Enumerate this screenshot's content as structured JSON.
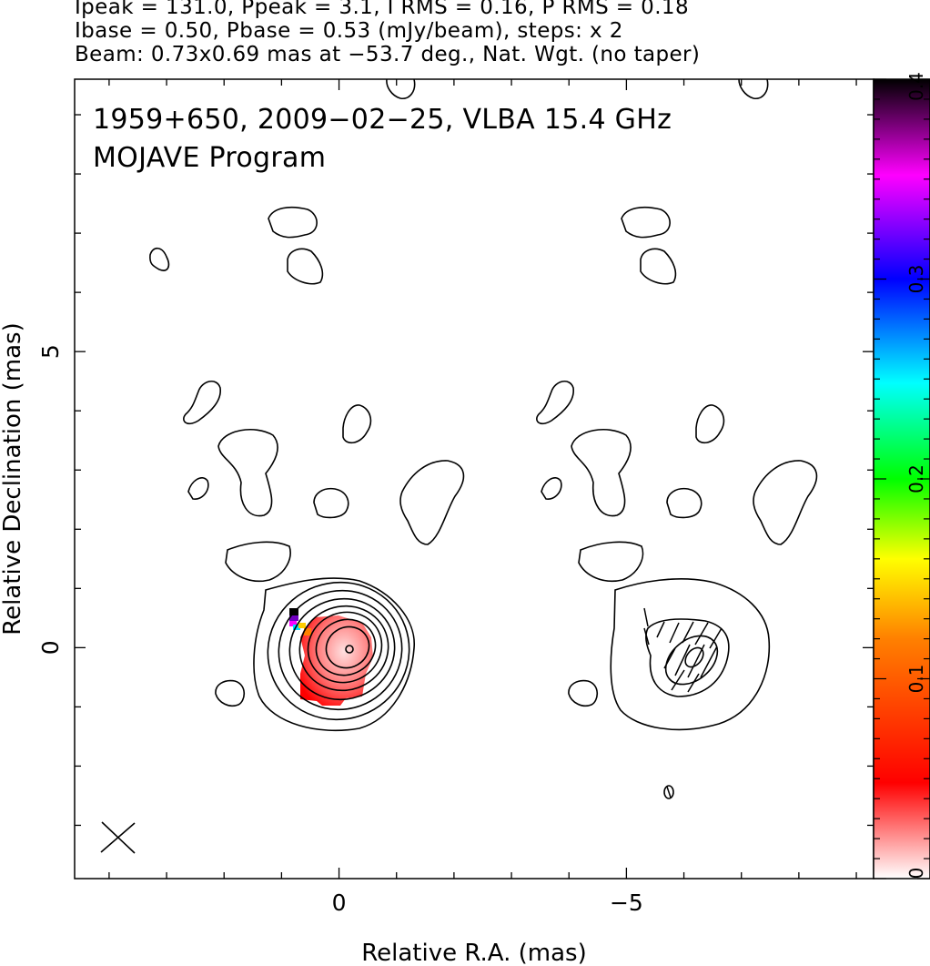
{
  "header": {
    "line1": "Ipeak = 131.0, Ppeak = 3.1, I RMS = 0.16, P RMS = 0.18",
    "line2": "Ibase = 0.50, Pbase = 0.53 (mJy/beam), steps: x 2",
    "line3": "Beam: 0.73x0.69 mas at −53.7 deg., Nat. Wgt. (no taper)"
  },
  "panel": {
    "title": "1959+650, 2009−02−25, VLBA 15.4 GHz",
    "subtitle": "MOJAVE Program"
  },
  "chart_data": {
    "type": "contour",
    "xlabel": "Relative R.A. (mas)",
    "ylabel": "Relative Declination (mas)",
    "xlim": [
      4.6,
      -9.3
    ],
    "ylim": [
      -3.9,
      9.6
    ],
    "x_ticks": [
      {
        "value": 0,
        "label": "0"
      },
      {
        "value": -5,
        "label": "−5"
      }
    ],
    "y_ticks": [
      {
        "value": 0,
        "label": "0"
      },
      {
        "value": 5,
        "label": "5"
      }
    ],
    "peak_I_mJy_per_beam": 131.0,
    "peak_P_mJy_per_beam": 3.1,
    "rms_I": 0.16,
    "rms_P": 0.18,
    "base_I": 0.5,
    "base_P": 0.53,
    "contour_step_factor": 2,
    "beam": {
      "major_mas": 0.73,
      "minor_mas": 0.69,
      "pa_deg": -53.7
    },
    "colorbar": {
      "min": 0,
      "max": 0.4,
      "ticks": [
        {
          "value": 0,
          "label": "0"
        },
        {
          "value": 0.1,
          "label": "0.1"
        },
        {
          "value": 0.2,
          "label": "0.2"
        },
        {
          "value": 0.3,
          "label": "0.3"
        },
        {
          "value": 0.4,
          "label": "0.4"
        }
      ],
      "stops": [
        "#ffffff",
        "#ff0000",
        "#ff8000",
        "#ffff00",
        "#00ff00",
        "#00ffff",
        "#0000ff",
        "#ff00ff",
        "#000000"
      ]
    },
    "colors": {
      "contour": "#000000",
      "frame": "#000000"
    },
    "I_panel_center": [
      0,
      0
    ],
    "P_panel_center": [
      -5.9,
      0
    ]
  }
}
